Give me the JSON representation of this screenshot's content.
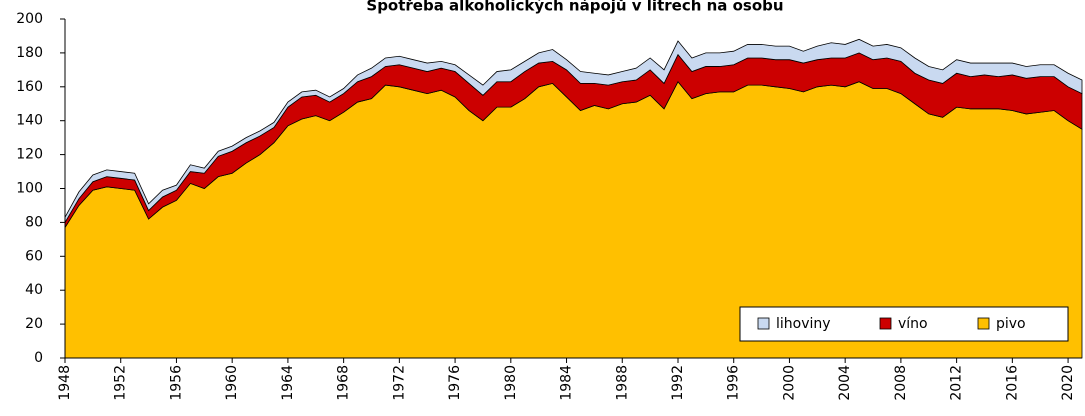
{
  "chart_data": {
    "type": "stacked_area",
    "title": "Spotřeba alkoholických nápojů v litrech na osobu",
    "x": [
      1948,
      1949,
      1950,
      1951,
      1952,
      1953,
      1954,
      1955,
      1956,
      1957,
      1958,
      1959,
      1960,
      1961,
      1962,
      1963,
      1964,
      1965,
      1966,
      1967,
      1968,
      1969,
      1970,
      1971,
      1972,
      1973,
      1974,
      1975,
      1976,
      1977,
      1978,
      1979,
      1980,
      1981,
      1982,
      1983,
      1984,
      1985,
      1986,
      1987,
      1988,
      1989,
      1990,
      1991,
      1992,
      1993,
      1994,
      1995,
      1996,
      1997,
      1998,
      1999,
      2000,
      2001,
      2002,
      2003,
      2004,
      2005,
      2006,
      2007,
      2008,
      2009,
      2010,
      2011,
      2012,
      2013,
      2014,
      2015,
      2016,
      2017,
      2018,
      2019,
      2020,
      2021
    ],
    "series": [
      {
        "name": "pivo",
        "color": "#ffc000",
        "values": [
          77,
          90,
          99,
          101,
          100,
          99,
          82,
          89,
          93,
          103,
          100,
          107,
          109,
          115,
          120,
          127,
          137,
          141,
          143,
          140,
          145,
          151,
          153,
          161,
          160,
          158,
          156,
          158,
          154,
          146,
          140,
          148,
          148,
          153,
          160,
          162,
          154,
          146,
          149,
          147,
          150,
          151,
          155,
          147,
          163,
          153,
          156,
          157,
          157,
          161,
          161,
          160,
          159,
          157,
          160,
          161,
          160,
          163,
          159,
          159,
          156,
          150,
          144,
          142,
          148,
          147,
          147,
          147,
          146,
          144,
          145,
          146,
          140,
          135
        ]
      },
      {
        "name": "víno",
        "color": "#cc0000",
        "values": [
          3,
          4,
          5,
          6,
          6,
          6,
          5,
          6,
          6,
          7,
          9,
          12,
          13,
          12,
          11,
          9,
          11,
          13,
          12,
          11,
          11,
          12,
          13,
          11,
          13,
          13,
          13,
          13,
          15,
          16,
          15,
          15,
          15,
          16,
          14,
          13,
          16,
          16,
          13,
          14,
          13,
          13,
          15,
          15,
          16,
          16,
          16,
          15,
          16,
          16,
          16,
          16,
          17,
          17,
          16,
          16,
          17,
          17,
          17,
          18,
          19,
          18,
          20,
          20,
          20,
          19,
          20,
          19,
          21,
          21,
          21,
          20,
          20,
          21
        ]
      },
      {
        "name": "lihoviny",
        "color": "#c9d9f0",
        "values": [
          3,
          4,
          4,
          4,
          4,
          4,
          4,
          4,
          3,
          4,
          3,
          3,
          3,
          3,
          3,
          3,
          3,
          3,
          3,
          3,
          3,
          4,
          5,
          5,
          5,
          5,
          5,
          4,
          4,
          5,
          6,
          6,
          7,
          6,
          6,
          7,
          6,
          7,
          6,
          6,
          6,
          7,
          7,
          8,
          8,
          8,
          8,
          8,
          8,
          8,
          8,
          8,
          8,
          7,
          8,
          9,
          8,
          8,
          8,
          8,
          8,
          9,
          8,
          8,
          8,
          8,
          7,
          8,
          7,
          7,
          7,
          7,
          8,
          8
        ]
      }
    ],
    "xlim": [
      1948,
      2021
    ],
    "xticks": [
      1948,
      1952,
      1956,
      1960,
      1964,
      1968,
      1972,
      1976,
      1980,
      1984,
      1988,
      1992,
      1996,
      2000,
      2004,
      2008,
      2012,
      2016,
      2020
    ],
    "ylim": [
      0,
      200
    ],
    "yticks": [
      0,
      20,
      40,
      60,
      80,
      100,
      120,
      140,
      160,
      180,
      200
    ],
    "legend": "bottom-right"
  }
}
